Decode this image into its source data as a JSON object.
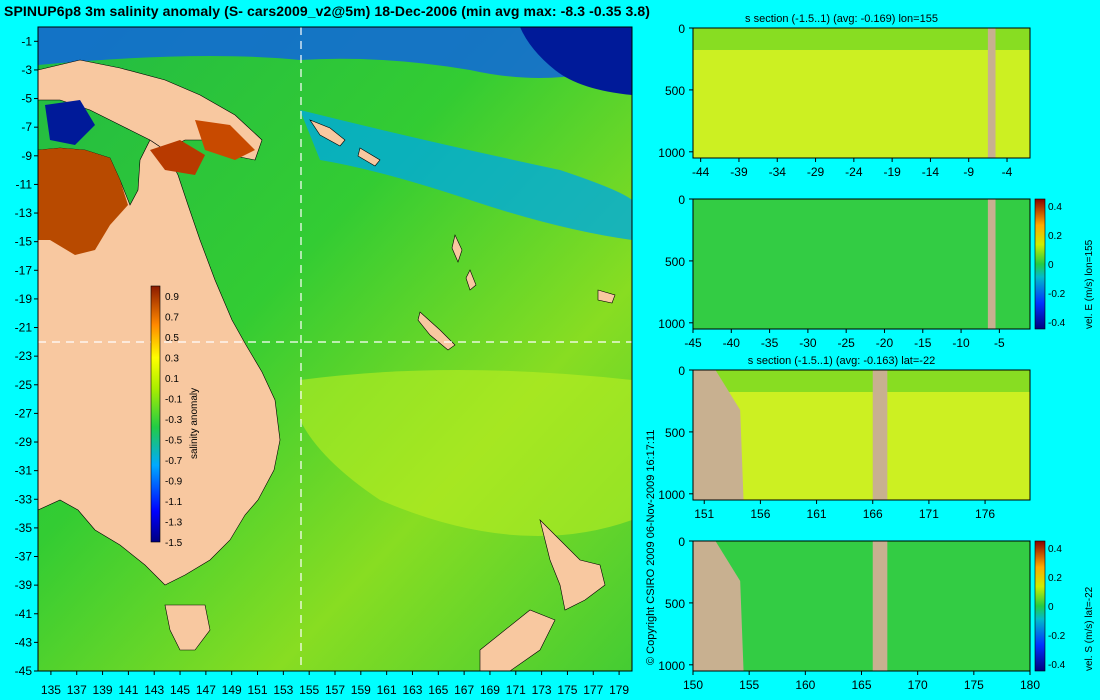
{
  "map": {
    "title": "SPINUP6p8 3m salinity anomaly (S- cars2009_v2@5m) 18-Dec-2006 (min avg max: -8.3 -0.35 3.8)",
    "lat_ticks": [
      "-1",
      "-3",
      "-5",
      "-7",
      "-9",
      "-11",
      "-13",
      "-15",
      "-17",
      "-19",
      "-21",
      "-23",
      "-25",
      "-27",
      "-29",
      "-31",
      "-33",
      "-35",
      "-37",
      "-39",
      "-41",
      "-43",
      "-45"
    ],
    "lon_ticks": [
      "135",
      "137",
      "139",
      "141",
      "143",
      "145",
      "147",
      "149",
      "151",
      "153",
      "155",
      "157",
      "159",
      "161",
      "163",
      "165",
      "167",
      "169",
      "171",
      "173",
      "175",
      "177",
      "179"
    ],
    "colorbar": {
      "label": "salinity anomaly",
      "ticks": [
        "0.9",
        "0.7",
        "0.5",
        "0.3",
        "0.1",
        "-0.1",
        "-0.3",
        "-0.5",
        "-0.7",
        "-0.9",
        "-1.1",
        "-1.3",
        "-1.5"
      ]
    },
    "copyright": "© Copyright CSIRO 2009   06-Nov-2009 16:17:11",
    "colors": {
      "ocean": "#33cc33",
      "land": "#f8c8a0",
      "background": "#00ffff"
    }
  },
  "panels": [
    {
      "title": "s section (-1.5..1) (avg: -0.169) lon=155",
      "x_ticks": [
        "-44",
        "-39",
        "-34",
        "-29",
        "-24",
        "-19",
        "-14",
        "-9",
        "-4"
      ],
      "y_ticks": [
        "0",
        "500",
        "1000"
      ]
    },
    {
      "title": "",
      "x_ticks": [
        "-45",
        "-40",
        "-35",
        "-30",
        "-25",
        "-20",
        "-15",
        "-10",
        "-5"
      ],
      "y_ticks": [
        "0",
        "500",
        "1000"
      ],
      "colorbar_ticks": [
        "0.4",
        "0.2",
        "0",
        "-0.2",
        "-0.4"
      ],
      "colorbar_label": "vel. E (m/s) lon=155"
    },
    {
      "title": "s section (-1.5..1) (avg: -0.163) lat=-22",
      "x_ticks": [
        "151",
        "156",
        "161",
        "166",
        "171",
        "176"
      ],
      "y_ticks": [
        "0",
        "500",
        "1000"
      ]
    },
    {
      "title": "",
      "x_ticks": [
        "150",
        "155",
        "160",
        "165",
        "170",
        "175",
        "180"
      ],
      "y_ticks": [
        "0",
        "500",
        "1000"
      ],
      "colorbar_ticks": [
        "0.4",
        "0.2",
        "0",
        "-0.2",
        "-0.4"
      ],
      "colorbar_label": "vel. S (m/s) lat=-22"
    }
  ],
  "chart_data": [
    {
      "type": "heatmap",
      "title": "SPINUP6p8 3m salinity anomaly (S- cars2009_v2@5m) 18-Dec-2006 (min avg max: -8.3 -0.35 3.8)",
      "x": [
        135,
        137,
        139,
        141,
        143,
        145,
        147,
        149,
        151,
        153,
        155,
        157,
        159,
        161,
        163,
        165,
        167,
        169,
        171,
        173,
        175,
        177,
        179
      ],
      "y": [
        -1,
        -3,
        -5,
        -7,
        -9,
        -11,
        -13,
        -15,
        -17,
        -19,
        -21,
        -23,
        -25,
        -27,
        -29,
        -31,
        -33,
        -35,
        -37,
        -39,
        -41,
        -43,
        -45
      ],
      "colorbar_range": [
        -1.5,
        1.0
      ],
      "colorbar_label": "salinity anomaly",
      "summary": {
        "min": -8.3,
        "avg": -0.35,
        "max": 3.8
      },
      "section_lines": {
        "lon": 155,
        "lat": -22
      }
    },
    {
      "type": "heatmap",
      "title": "s section (-1.5..1) (avg: -0.169) lon=155",
      "xlim": [
        -45,
        -1
      ],
      "ylim": [
        1050,
        0
      ],
      "avg": -0.169
    },
    {
      "type": "heatmap",
      "title": "",
      "xlim": [
        -45,
        -1
      ],
      "ylim": [
        1050,
        0
      ],
      "colorbar_range": [
        -0.4,
        0.4
      ],
      "colorbar_label": "vel. E (m/s) lon=155"
    },
    {
      "type": "heatmap",
      "title": "s section (-1.5..1) (avg: -0.163) lat=-22",
      "xlim": [
        150,
        180
      ],
      "ylim": [
        1050,
        0
      ],
      "avg": -0.163
    },
    {
      "type": "heatmap",
      "title": "",
      "xlim": [
        150,
        180
      ],
      "ylim": [
        1050,
        0
      ],
      "colorbar_range": [
        -0.4,
        0.4
      ],
      "colorbar_label": "vel. S (m/s) lat=-22"
    }
  ]
}
